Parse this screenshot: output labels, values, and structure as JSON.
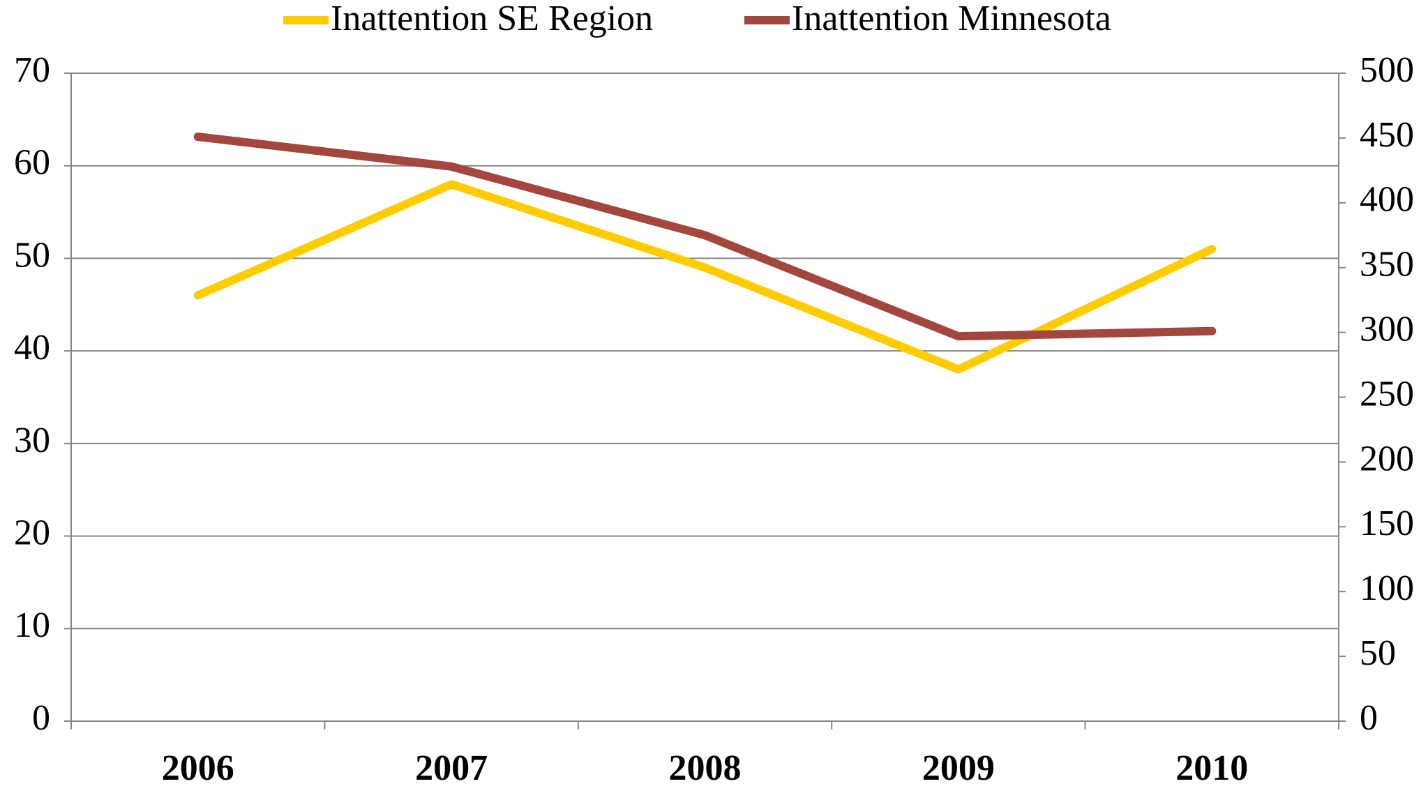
{
  "chart_data": {
    "type": "line",
    "categories": [
      "2006",
      "2007",
      "2008",
      "2009",
      "2010"
    ],
    "series": [
      {
        "name": "Inattention SE Region",
        "color": "#ffcc00",
        "values": [
          46,
          58,
          49,
          38,
          51
        ]
      },
      {
        "name": "Inattention Minnesota",
        "color": "#a3463e",
        "values": [
          451,
          428,
          375,
          297,
          301
        ],
        "axis": "y2"
      }
    ],
    "ylim": [
      0,
      70
    ],
    "yticks": [
      0,
      10,
      20,
      30,
      40,
      50,
      60,
      70
    ],
    "y2lim": [
      0,
      500
    ],
    "y2ticks": [
      0,
      50,
      100,
      150,
      200,
      250,
      300,
      350,
      400,
      450,
      500
    ],
    "grid": true,
    "legend": "top"
  }
}
